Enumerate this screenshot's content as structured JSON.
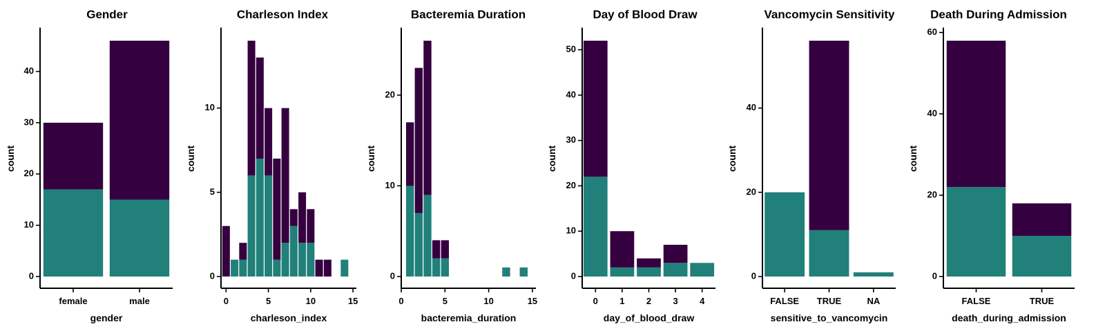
{
  "colors": {
    "series_top": "#35003F",
    "series_bottom": "#21807A"
  },
  "chart_data": [
    {
      "type": "bar",
      "title": "Gender",
      "xlabel": "gender",
      "ylabel": "count",
      "categories": [
        "female",
        "male"
      ],
      "series": [
        {
          "values": [
            17,
            15
          ]
        },
        {
          "values": [
            13,
            31
          ]
        }
      ],
      "ylim": [
        0,
        46
      ],
      "yticks": [
        0,
        10,
        20,
        30,
        40
      ],
      "grid": false
    },
    {
      "type": "bar",
      "title": "Charleson Index",
      "xlabel": "charleson_index",
      "ylabel": "count",
      "x": [
        0,
        1,
        2,
        3,
        4,
        5,
        6,
        7,
        8,
        9,
        10,
        11,
        12,
        14
      ],
      "series": [
        {
          "values": [
            0,
            1,
            1,
            6,
            7,
            6,
            1,
            2,
            3,
            2,
            2,
            0,
            0,
            1
          ]
        },
        {
          "values": [
            3,
            0,
            1,
            8,
            6,
            4,
            6,
            8,
            1,
            3,
            2,
            1,
            1,
            0
          ]
        }
      ],
      "xlim": [
        -0.6,
        15.4
      ],
      "xticks": [
        0,
        5,
        10,
        15
      ],
      "ylim": [
        0,
        14
      ],
      "yticks": [
        0,
        5,
        10
      ],
      "grid": false
    },
    {
      "type": "bar",
      "title": "Bacteremia Duration",
      "xlabel": "bacteremia_duration",
      "ylabel": "count",
      "x": [
        1,
        2,
        3,
        4,
        5,
        12,
        14
      ],
      "series": [
        {
          "values": [
            10,
            7,
            9,
            2,
            2,
            1,
            1
          ]
        },
        {
          "values": [
            7,
            16,
            17,
            2,
            2,
            0,
            0
          ]
        }
      ],
      "xlim": [
        0,
        15.4
      ],
      "xticks": [
        0,
        5,
        10,
        15
      ],
      "ylim": [
        0,
        26
      ],
      "yticks": [
        0,
        10,
        20
      ],
      "grid": false
    },
    {
      "type": "bar",
      "title": "Day of Blood Draw",
      "xlabel": "day_of_blood_draw",
      "ylabel": "count",
      "x": [
        0,
        1,
        2,
        3,
        4
      ],
      "series": [
        {
          "values": [
            22,
            2,
            2,
            3,
            3
          ]
        },
        {
          "values": [
            30,
            8,
            2,
            4,
            0
          ]
        }
      ],
      "xlim": [
        -0.5,
        4.5
      ],
      "xticks": [
        0,
        1,
        2,
        3,
        4
      ],
      "ylim": [
        0,
        52
      ],
      "yticks": [
        0,
        10,
        20,
        30,
        40,
        50
      ],
      "grid": false
    },
    {
      "type": "bar",
      "title": "Vancomycin Sensitivity",
      "xlabel": "sensitive_to_vancomycin",
      "ylabel": "count",
      "categories": [
        "FALSE",
        "TRUE",
        "NA"
      ],
      "series": [
        {
          "values": [
            20,
            11,
            1
          ]
        },
        {
          "values": [
            0,
            45,
            0
          ]
        }
      ],
      "ylim": [
        0,
        56
      ],
      "yticks": [
        0,
        20,
        40
      ],
      "grid": false
    },
    {
      "type": "bar",
      "title": "Death During Admission",
      "xlabel": "death_during_admission",
      "ylabel": "count",
      "categories": [
        "FALSE",
        "TRUE"
      ],
      "series": [
        {
          "values": [
            22,
            10
          ]
        },
        {
          "values": [
            36,
            8
          ]
        }
      ],
      "ylim": [
        0,
        58
      ],
      "yticks": [
        0,
        20,
        40,
        60
      ],
      "grid": false
    }
  ]
}
